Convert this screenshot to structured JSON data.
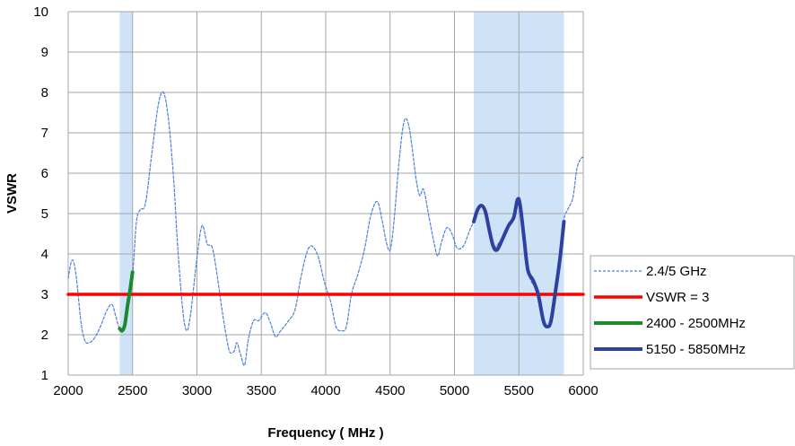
{
  "chart_data": {
    "type": "line",
    "xlabel": "Frequency ( MHz )",
    "ylabel": "VSWR",
    "xlim": [
      2000,
      6000
    ],
    "ylim": [
      1,
      10
    ],
    "xticks": [
      "2000",
      "2500",
      "3000",
      "3500",
      "4000",
      "4500",
      "5000",
      "5500",
      "6000"
    ],
    "yticks": [
      "1",
      "2",
      "3",
      "4",
      "5",
      "6",
      "7",
      "8",
      "9",
      "10"
    ],
    "grid": true,
    "legend_position": "bottom-right",
    "shaded_bands": [
      {
        "x": [
          2400,
          2500
        ],
        "color": "#cfe3f8"
      },
      {
        "x": [
          5150,
          5850
        ],
        "color": "#cfe3f8"
      }
    ],
    "series": [
      {
        "name": "2.4/5 GHz",
        "style": "dashed",
        "color": "#4a7fe0",
        "points": [
          [
            2000,
            3.4
          ],
          [
            2030,
            3.85
          ],
          [
            2060,
            3.5
          ],
          [
            2100,
            2.3
          ],
          [
            2130,
            1.85
          ],
          [
            2160,
            1.8
          ],
          [
            2200,
            1.9
          ],
          [
            2250,
            2.2
          ],
          [
            2300,
            2.6
          ],
          [
            2340,
            2.75
          ],
          [
            2370,
            2.45
          ],
          [
            2400,
            2.15
          ],
          [
            2430,
            2.2
          ],
          [
            2460,
            2.8
          ],
          [
            2500,
            3.5
          ],
          [
            2530,
            4.8
          ],
          [
            2560,
            5.1
          ],
          [
            2600,
            5.25
          ],
          [
            2650,
            6.5
          ],
          [
            2700,
            7.7
          ],
          [
            2740,
            8.0
          ],
          [
            2780,
            7.3
          ],
          [
            2820,
            5.8
          ],
          [
            2850,
            4.2
          ],
          [
            2890,
            2.6
          ],
          [
            2920,
            2.1
          ],
          [
            2950,
            2.5
          ],
          [
            3000,
            3.9
          ],
          [
            3040,
            4.7
          ],
          [
            3080,
            4.25
          ],
          [
            3120,
            4.15
          ],
          [
            3160,
            3.4
          ],
          [
            3200,
            2.5
          ],
          [
            3240,
            1.75
          ],
          [
            3260,
            1.55
          ],
          [
            3290,
            1.6
          ],
          [
            3310,
            1.8
          ],
          [
            3340,
            1.5
          ],
          [
            3370,
            1.25
          ],
          [
            3400,
            1.9
          ],
          [
            3440,
            2.35
          ],
          [
            3480,
            2.35
          ],
          [
            3530,
            2.55
          ],
          [
            3570,
            2.3
          ],
          [
            3610,
            1.95
          ],
          [
            3650,
            2.1
          ],
          [
            3700,
            2.3
          ],
          [
            3760,
            2.6
          ],
          [
            3800,
            3.3
          ],
          [
            3850,
            4.0
          ],
          [
            3890,
            4.2
          ],
          [
            3940,
            3.95
          ],
          [
            3990,
            3.3
          ],
          [
            4040,
            2.8
          ],
          [
            4080,
            2.2
          ],
          [
            4120,
            2.1
          ],
          [
            4160,
            2.2
          ],
          [
            4200,
            3.0
          ],
          [
            4250,
            3.5
          ],
          [
            4300,
            4.1
          ],
          [
            4350,
            4.95
          ],
          [
            4400,
            5.3
          ],
          [
            4440,
            4.8
          ],
          [
            4470,
            4.3
          ],
          [
            4500,
            4.1
          ],
          [
            4530,
            4.8
          ],
          [
            4570,
            6.3
          ],
          [
            4610,
            7.3
          ],
          [
            4650,
            7.1
          ],
          [
            4700,
            5.9
          ],
          [
            4730,
            5.45
          ],
          [
            4760,
            5.6
          ],
          [
            4800,
            4.95
          ],
          [
            4840,
            4.3
          ],
          [
            4870,
            3.95
          ],
          [
            4900,
            4.3
          ],
          [
            4940,
            4.65
          ],
          [
            4980,
            4.5
          ],
          [
            5020,
            4.15
          ],
          [
            5070,
            4.2
          ],
          [
            5120,
            4.6
          ],
          [
            5150,
            4.8
          ],
          [
            5200,
            5.2
          ],
          [
            5250,
            4.85
          ],
          [
            5300,
            4.2
          ],
          [
            5350,
            4.3
          ],
          [
            5400,
            4.6
          ],
          [
            5450,
            4.8
          ],
          [
            5490,
            5.35
          ],
          [
            5520,
            4.9
          ],
          [
            5560,
            3.7
          ],
          [
            5600,
            3.3
          ],
          [
            5650,
            3.1
          ],
          [
            5700,
            2.3
          ],
          [
            5740,
            2.25
          ],
          [
            5780,
            2.8
          ],
          [
            5820,
            3.9
          ],
          [
            5850,
            4.85
          ],
          [
            5880,
            5.1
          ],
          [
            5920,
            5.4
          ],
          [
            5950,
            6.1
          ],
          [
            5980,
            6.35
          ],
          [
            6000,
            6.4
          ]
        ]
      },
      {
        "name": "VSWR = 3",
        "style": "solid",
        "color": "#ff0000",
        "points": [
          [
            2000,
            3
          ],
          [
            6000,
            3
          ]
        ]
      },
      {
        "name": "2400 - 2500MHz",
        "style": "solid",
        "color": "#1a8a2a",
        "points": [
          [
            2400,
            2.15
          ],
          [
            2420,
            2.1
          ],
          [
            2440,
            2.25
          ],
          [
            2460,
            2.7
          ],
          [
            2480,
            3.1
          ],
          [
            2500,
            3.55
          ]
        ]
      },
      {
        "name": "5150 - 5850MHz",
        "style": "solid",
        "color": "#2e40a0",
        "points": [
          [
            5150,
            4.8
          ],
          [
            5180,
            5.1
          ],
          [
            5210,
            5.2
          ],
          [
            5240,
            5.05
          ],
          [
            5270,
            4.6
          ],
          [
            5300,
            4.2
          ],
          [
            5330,
            4.1
          ],
          [
            5370,
            4.35
          ],
          [
            5420,
            4.7
          ],
          [
            5460,
            4.9
          ],
          [
            5490,
            5.35
          ],
          [
            5510,
            5.2
          ],
          [
            5540,
            4.4
          ],
          [
            5570,
            3.6
          ],
          [
            5610,
            3.35
          ],
          [
            5650,
            3.0
          ],
          [
            5690,
            2.35
          ],
          [
            5720,
            2.2
          ],
          [
            5750,
            2.35
          ],
          [
            5790,
            3.2
          ],
          [
            5820,
            3.9
          ],
          [
            5850,
            4.8
          ]
        ]
      }
    ]
  }
}
